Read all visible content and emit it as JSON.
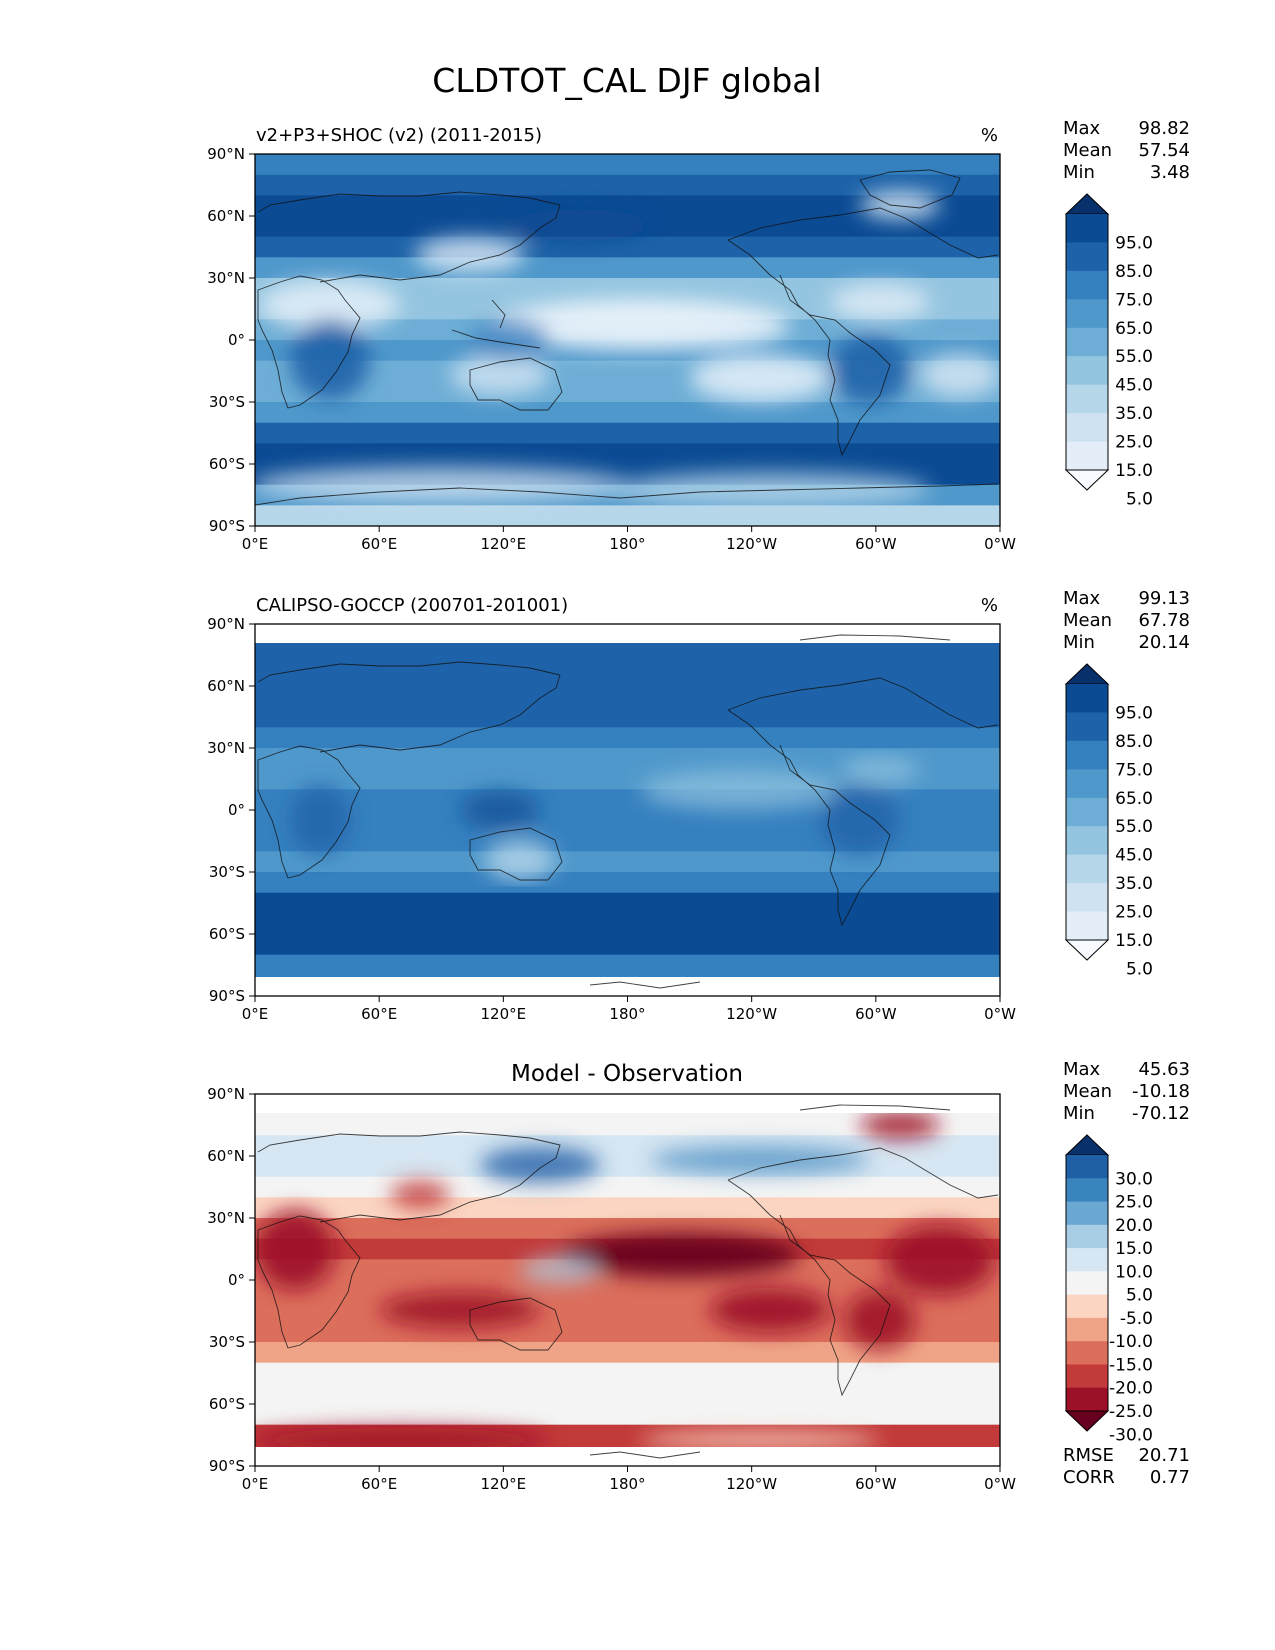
{
  "figure": {
    "title": "CLDTOT_CAL DJF global"
  },
  "chart_data": [
    {
      "type": "heatmap",
      "panel": "model",
      "title_left": "v2+P3+SHOC (v2) (2011-2015)",
      "units": "%",
      "stats": {
        "Max": "98.82",
        "Mean": "57.54",
        "Min": "3.48"
      },
      "xticks": [
        "0°E",
        "60°E",
        "120°E",
        "180°",
        "120°W",
        "60°W",
        "0°W"
      ],
      "yticks": [
        "90°N",
        "60°N",
        "30°N",
        "0°",
        "30°S",
        "60°S",
        "90°S"
      ],
      "xlim": [
        0,
        360
      ],
      "ylim": [
        -90,
        90
      ],
      "colorbar": {
        "extend": "both",
        "labels": [
          "95.0",
          "85.0",
          "75.0",
          "65.0",
          "55.0",
          "45.0",
          "35.0",
          "25.0",
          "15.0",
          "5.0"
        ],
        "colors": [
          "#08306b",
          "#0b4b94",
          "#1e63a9",
          "#3580bf",
          "#4f98cb",
          "#6eaed6",
          "#94c5e0",
          "#b6d6ea",
          "#cfe2f1",
          "#e3eef8",
          "#f7fbff"
        ]
      },
      "zonal_profile": {
        "lat": [
          90,
          80,
          70,
          60,
          50,
          40,
          30,
          20,
          10,
          0,
          -10,
          -20,
          -30,
          -40,
          -50,
          -60,
          -70,
          -80,
          -90
        ],
        "value": [
          60,
          78,
          88,
          92,
          85,
          72,
          45,
          35,
          45,
          55,
          60,
          45,
          45,
          75,
          92,
          96,
          80,
          30,
          20
        ]
      }
    },
    {
      "type": "heatmap",
      "panel": "observation",
      "title_left": "CALIPSO-GOCCP (200701-201001)",
      "units": "%",
      "stats": {
        "Max": "99.13",
        "Mean": "67.78",
        "Min": "20.14"
      },
      "xticks": [
        "0°E",
        "60°E",
        "120°E",
        "180°",
        "120°W",
        "60°W",
        "0°W"
      ],
      "yticks": [
        "90°N",
        "60°N",
        "30°N",
        "0°",
        "30°S",
        "60°S",
        "90°S"
      ],
      "xlim": [
        0,
        360
      ],
      "ylim": [
        -90,
        90
      ],
      "valid_lat": [
        -82,
        82
      ],
      "colorbar": {
        "extend": "both",
        "labels": [
          "95.0",
          "85.0",
          "75.0",
          "65.0",
          "55.0",
          "45.0",
          "35.0",
          "25.0",
          "15.0",
          "5.0"
        ],
        "colors": [
          "#08306b",
          "#0b4b94",
          "#1e63a9",
          "#3580bf",
          "#4f98cb",
          "#6eaed6",
          "#94c5e0",
          "#b6d6ea",
          "#cfe2f1",
          "#e3eef8",
          "#f7fbff"
        ]
      },
      "zonal_profile": {
        "lat": [
          82,
          70,
          60,
          50,
          40,
          30,
          20,
          10,
          0,
          -10,
          -20,
          -30,
          -40,
          -50,
          -60,
          -70,
          -82
        ],
        "value": [
          75,
          80,
          82,
          80,
          72,
          62,
          55,
          62,
          72,
          70,
          60,
          62,
          80,
          90,
          94,
          85,
          60
        ]
      }
    },
    {
      "type": "heatmap",
      "panel": "difference",
      "title_center": "Model - Observation",
      "stats": {
        "Max": "45.63",
        "Mean": "-10.18",
        "Min": "-70.12"
      },
      "metrics": {
        "RMSE": "20.71",
        "CORR": "0.77"
      },
      "xticks": [
        "0°E",
        "60°E",
        "120°E",
        "180°",
        "120°W",
        "60°W",
        "0°W"
      ],
      "yticks": [
        "90°N",
        "60°N",
        "30°N",
        "0°",
        "30°S",
        "60°S",
        "90°S"
      ],
      "xlim": [
        0,
        360
      ],
      "ylim": [
        -90,
        90
      ],
      "valid_lat": [
        -82,
        82
      ],
      "colorbar": {
        "extend": "both",
        "labels": [
          "30.0",
          "25.0",
          "20.0",
          "15.0",
          "10.0",
          "5.0",
          "-5.0",
          "-10.0",
          "-15.0",
          "-20.0",
          "-25.0",
          "-30.0"
        ],
        "colors": [
          "#08306b",
          "#1f5fa6",
          "#3a84be",
          "#6aa8d2",
          "#a9cde4",
          "#d6e6f2",
          "#f4f4f4",
          "#fbd5c2",
          "#f0a487",
          "#dc6e5c",
          "#c23b3a",
          "#9c1127",
          "#67001f"
        ]
      },
      "zonal_profile": {
        "lat": [
          82,
          70,
          60,
          50,
          40,
          30,
          20,
          10,
          0,
          -10,
          -20,
          -30,
          -40,
          -50,
          -60,
          -70,
          -82
        ],
        "value": [
          -10,
          8,
          10,
          5,
          0,
          -15,
          -25,
          -20,
          -20,
          -15,
          -20,
          -18,
          -4,
          2,
          2,
          -8,
          -35
        ]
      }
    }
  ]
}
